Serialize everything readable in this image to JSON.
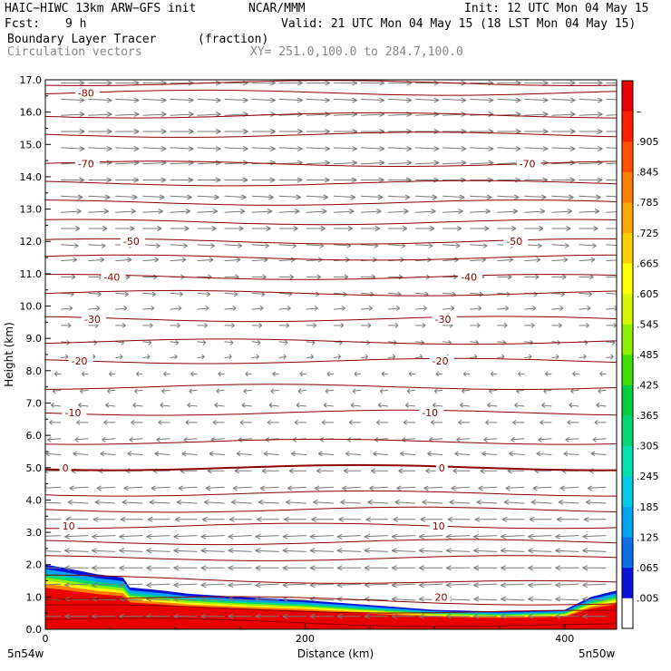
{
  "header": {
    "model": "HAIC−HIWC 13km ARW−GFS init",
    "org": "NCAR/MMM",
    "init": "Init: 12 UTC Mon 04 May 15",
    "fcst_label": "Fcst:",
    "fcst_value": "9 h",
    "valid": "Valid: 21 UTC Mon 04 May 15 (18 LST Mon 04 May 15)",
    "field": "Boundary Layer Tracer",
    "units": "(fraction)",
    "vectors": "Circulation vectors",
    "xy": "XY= 251.0,100.0 to 284.7,100.0"
  },
  "chart_data": {
    "type": "heatmap",
    "xlabel": "Distance (km)",
    "ylabel": "Height (km)",
    "xlim": [
      0,
      440
    ],
    "ylim": [
      0,
      17
    ],
    "x_ticks": [
      0,
      200,
      400
    ],
    "y_ticks": [
      "0.0",
      "1.0",
      "2.0",
      "3.0",
      "4.0",
      "5.0",
      "6.0",
      "7.0",
      "8.0",
      "9.0",
      "10.0",
      "11.0",
      "12.0",
      "13.0",
      "14.0",
      "15.0",
      "16.0",
      "17.0"
    ],
    "x_end_labels": {
      "left": "5n54w",
      "right": "5n50w"
    },
    "colorbar": {
      "labels": [
        ".005",
        ".065",
        ".125",
        ".185",
        ".245",
        ".305",
        ".365",
        ".425",
        ".485",
        ".545",
        ".605",
        ".665",
        ".725",
        ".785",
        ".845",
        ".905",
        "–"
      ],
      "colors": [
        "#ffffff",
        "#0a14d8",
        "#0a6ee8",
        "#00a4f0",
        "#00cce8",
        "#00e0b0",
        "#00d878",
        "#00d040",
        "#40e000",
        "#90f000",
        "#d8f800",
        "#ffff00",
        "#ffd000",
        "#ffa800",
        "#ff8000",
        "#ff5000",
        "#ff2000",
        "#e80000"
      ]
    },
    "temperature_contours": {
      "color": "#8b0000",
      "levels": [
        {
          "value": "-80",
          "h": 16.6,
          "label_x": [
            25
          ]
        },
        {
          "value": "-70",
          "h": 14.4,
          "label_x": [
            25,
            365
          ]
        },
        {
          "value": "-50",
          "h": 12.0,
          "label_x": [
            60,
            355
          ]
        },
        {
          "value": "-40",
          "h": 10.9,
          "label_x": [
            45,
            320
          ]
        },
        {
          "value": "-30",
          "h": 9.6,
          "label_x": [
            30,
            300
          ]
        },
        {
          "value": "-20",
          "h": 8.3,
          "label_x": [
            20,
            298
          ]
        },
        {
          "value": "-10",
          "h": 6.7,
          "label_x": [
            15,
            290
          ]
        },
        {
          "value": "0",
          "h": 5.0,
          "label_x": [
            13,
            303
          ]
        },
        {
          "value": "10",
          "h": 3.2,
          "label_x": [
            13,
            298
          ]
        },
        {
          "value": "20",
          "h": 1.0,
          "label_x": [
            300
          ]
        }
      ],
      "unlabeled_heights": [
        0.3,
        0.7,
        1.6,
        2.2,
        2.7,
        3.7,
        4.2,
        5.8,
        7.5,
        8.9,
        10.4,
        11.5,
        12.6,
        13.2,
        13.8,
        15.3,
        15.9,
        16.9
      ]
    },
    "tracer_top_km": [
      [
        0,
        2.0
      ],
      [
        15,
        1.9
      ],
      [
        40,
        1.7
      ],
      [
        60,
        1.6
      ],
      [
        65,
        1.3
      ],
      [
        90,
        1.2
      ],
      [
        110,
        1.1
      ],
      [
        150,
        1.0
      ],
      [
        200,
        0.9
      ],
      [
        250,
        0.75
      ],
      [
        300,
        0.6
      ],
      [
        350,
        0.55
      ],
      [
        400,
        0.6
      ],
      [
        420,
        1.0
      ],
      [
        440,
        1.2
      ]
    ],
    "wind": {
      "upper_direction": "east",
      "lower_direction": "west",
      "reversal_km": 8.0
    }
  }
}
